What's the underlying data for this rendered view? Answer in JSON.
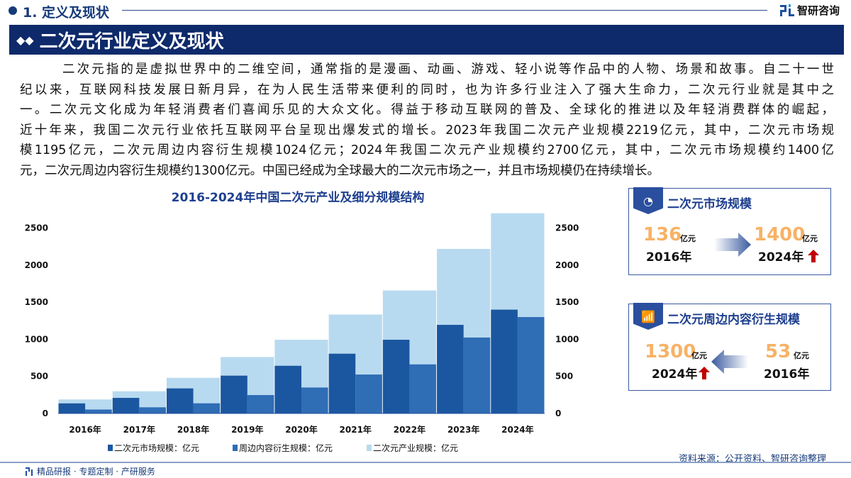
{
  "header": {
    "section": "1. 定义及现状",
    "logo_text": "智研咨询",
    "banner_title": "二次元行业定义及现状"
  },
  "paragraph": [
    "二次元指的是虚拟世界中的二维空间，通常指的是漫画、动画、游戏、轻小说等作品中的人物、场景和故事。自二十一世",
    "纪以来，互联网科技发展日新月异，在为人民生活带来便利的同时，也为许多行业注入了强大生命力，二次元行业就是其中之",
    "一。二次元文化成为年轻消费者们喜闻乐见的大众文化。得益于移动互联网的普及、全球化的推进以及年轻消费群体的崛起，",
    "近十年来，我国二次元行业依托互联网平台呈现出爆发式的增长。2023年我国二次元产业规模2219亿元，其中，二次元市场规",
    "模1195亿元，二次元周边内容衍生规模1024亿元；2024年我国二次元产业规模约2700亿元，其中，二次元市场规模约1400亿",
    "元，二次元周边内容衍生规模约1300亿元。中国已经成为全球最大的二次元市场之一，并且市场规模仍在持续增长。"
  ],
  "chart_data": {
    "type": "bar",
    "title": "2016-2024年中国二次元产业及细分规模结构",
    "categories": [
      "2016年",
      "2017年",
      "2018年",
      "2019年",
      "2020年",
      "2021年",
      "2022年",
      "2023年",
      "2024年"
    ],
    "series": [
      {
        "name": "二次元市场规模：亿元",
        "color": "#1b57a0",
        "values": [
          136,
          210,
          338,
          510,
          643,
          806,
          994,
          1195,
          1400
        ]
      },
      {
        "name": "周边内容衍生规模：亿元",
        "color": "#2f6db5",
        "values": [
          53,
          83,
          137,
          248,
          350,
          525,
          662,
          1024,
          1300
        ]
      },
      {
        "name": "二次元产业规模：亿元",
        "color": "#b8daf0",
        "values": [
          189,
          299,
          481,
          761,
          994,
          1334,
          1659,
          2219,
          2700
        ]
      }
    ],
    "yticks": [
      0,
      500,
      1000,
      1500,
      2000,
      2500
    ],
    "ylim": [
      0,
      2700
    ],
    "secondary_yticks": [
      0,
      500,
      1000,
      1500,
      2000,
      2500
    ],
    "grid": false,
    "legend": "bottom"
  },
  "cards": [
    {
      "title": "二次元市场规模",
      "icon": "pie-chart-icon",
      "from_value": "136",
      "from_unit": "亿元",
      "from_year": "2016年",
      "to_value": "1400",
      "to_unit": "亿元",
      "to_year": "2024年"
    },
    {
      "title": "二次元周边内容衍生规模",
      "icon": "bar-growth-icon",
      "from_value": "53",
      "from_unit": "亿元",
      "from_year": "2016年",
      "to_value": "1300",
      "to_unit": "亿元",
      "to_year": "2024年"
    }
  ],
  "colors": {
    "navy": "#0e2a6b",
    "accent_orange": "#f7b266",
    "up_red": "#c00000"
  },
  "footer": {
    "left": "精品研报 · 专题定制 · 产研服务",
    "source": "资料来源：公开资料、智研咨询整理"
  }
}
